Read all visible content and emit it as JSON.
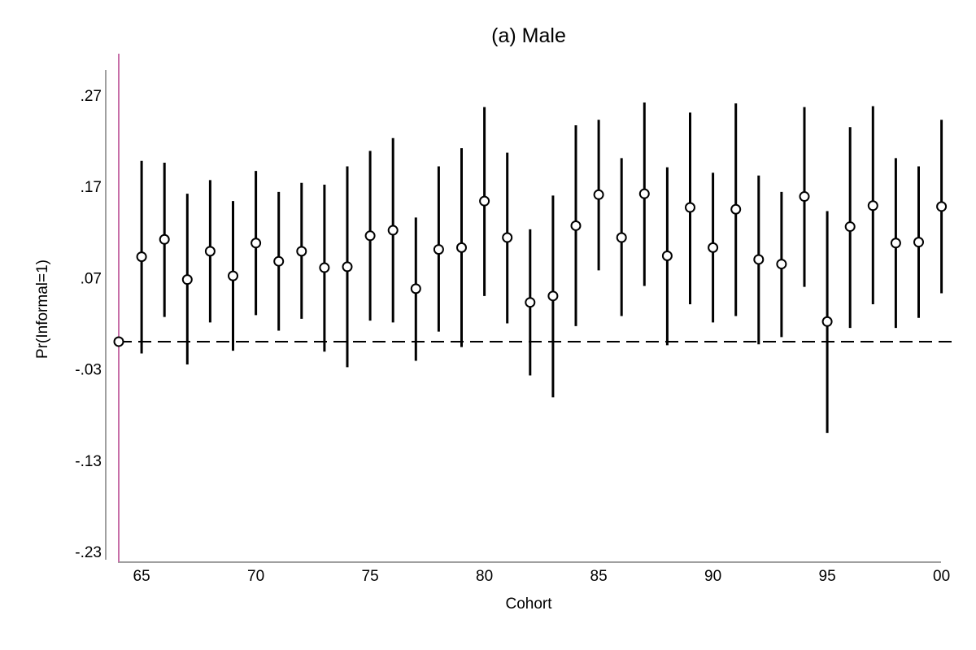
{
  "chart_data": {
    "type": "scatter",
    "subtype": "coefficient plot with confidence intervals",
    "title": "(a) Male",
    "xlabel": "Cohort",
    "ylabel": "Pr(Informal=1)",
    "x_ticks": [
      "65",
      "70",
      "75",
      "80",
      "85",
      "90",
      "95",
      "00"
    ],
    "y_ticks": [
      ".27",
      ".17",
      ".07",
      "-.03",
      "-.13",
      "-.23"
    ],
    "x_range": [
      1964,
      2000
    ],
    "ylim": [
      -0.23,
      0.27
    ],
    "reference_line_y": 0,
    "reference_category": 1964,
    "reference_line_color": "#c76fa8",
    "series": [
      {
        "points": [
          {
            "x": 1964,
            "y": 0.0,
            "lo": 0.0,
            "hi": 0.0
          },
          {
            "x": 1965,
            "y": 0.093,
            "lo": -0.013,
            "hi": 0.198
          },
          {
            "x": 1966,
            "y": 0.112,
            "lo": 0.027,
            "hi": 0.196
          },
          {
            "x": 1967,
            "y": 0.068,
            "lo": -0.025,
            "hi": 0.162
          },
          {
            "x": 1968,
            "y": 0.099,
            "lo": 0.021,
            "hi": 0.177
          },
          {
            "x": 1969,
            "y": 0.072,
            "lo": -0.01,
            "hi": 0.154
          },
          {
            "x": 1970,
            "y": 0.108,
            "lo": 0.029,
            "hi": 0.187
          },
          {
            "x": 1971,
            "y": 0.088,
            "lo": 0.012,
            "hi": 0.164
          },
          {
            "x": 1972,
            "y": 0.099,
            "lo": 0.025,
            "hi": 0.174
          },
          {
            "x": 1973,
            "y": 0.081,
            "lo": -0.011,
            "hi": 0.172
          },
          {
            "x": 1974,
            "y": 0.082,
            "lo": -0.028,
            "hi": 0.192
          },
          {
            "x": 1975,
            "y": 0.116,
            "lo": 0.023,
            "hi": 0.209
          },
          {
            "x": 1976,
            "y": 0.122,
            "lo": 0.021,
            "hi": 0.223
          },
          {
            "x": 1977,
            "y": 0.058,
            "lo": -0.021,
            "hi": 0.136
          },
          {
            "x": 1978,
            "y": 0.101,
            "lo": 0.011,
            "hi": 0.192
          },
          {
            "x": 1979,
            "y": 0.103,
            "lo": -0.006,
            "hi": 0.212
          },
          {
            "x": 1980,
            "y": 0.154,
            "lo": 0.05,
            "hi": 0.257
          },
          {
            "x": 1981,
            "y": 0.114,
            "lo": 0.02,
            "hi": 0.207
          },
          {
            "x": 1982,
            "y": 0.043,
            "lo": -0.037,
            "hi": 0.123
          },
          {
            "x": 1983,
            "y": 0.05,
            "lo": -0.061,
            "hi": 0.16
          },
          {
            "x": 1984,
            "y": 0.127,
            "lo": 0.017,
            "hi": 0.237
          },
          {
            "x": 1985,
            "y": 0.161,
            "lo": 0.078,
            "hi": 0.243
          },
          {
            "x": 1986,
            "y": 0.114,
            "lo": 0.028,
            "hi": 0.201
          },
          {
            "x": 1987,
            "y": 0.162,
            "lo": 0.061,
            "hi": 0.262
          },
          {
            "x": 1988,
            "y": 0.094,
            "lo": -0.004,
            "hi": 0.191
          },
          {
            "x": 1989,
            "y": 0.147,
            "lo": 0.041,
            "hi": 0.251
          },
          {
            "x": 1990,
            "y": 0.103,
            "lo": 0.021,
            "hi": 0.185
          },
          {
            "x": 1991,
            "y": 0.145,
            "lo": 0.028,
            "hi": 0.261
          },
          {
            "x": 1992,
            "y": 0.09,
            "lo": -0.003,
            "hi": 0.182
          },
          {
            "x": 1993,
            "y": 0.085,
            "lo": 0.005,
            "hi": 0.164
          },
          {
            "x": 1994,
            "y": 0.159,
            "lo": 0.06,
            "hi": 0.257
          },
          {
            "x": 1995,
            "y": 0.022,
            "lo": -0.1,
            "hi": 0.143
          },
          {
            "x": 1996,
            "y": 0.126,
            "lo": 0.015,
            "hi": 0.235
          },
          {
            "x": 1997,
            "y": 0.149,
            "lo": 0.041,
            "hi": 0.258
          },
          {
            "x": 1998,
            "y": 0.108,
            "lo": 0.015,
            "hi": 0.201
          },
          {
            "x": 1999,
            "y": 0.109,
            "lo": 0.026,
            "hi": 0.192
          },
          {
            "x": 2000,
            "y": 0.148,
            "lo": 0.053,
            "hi": 0.243
          }
        ]
      }
    ]
  }
}
